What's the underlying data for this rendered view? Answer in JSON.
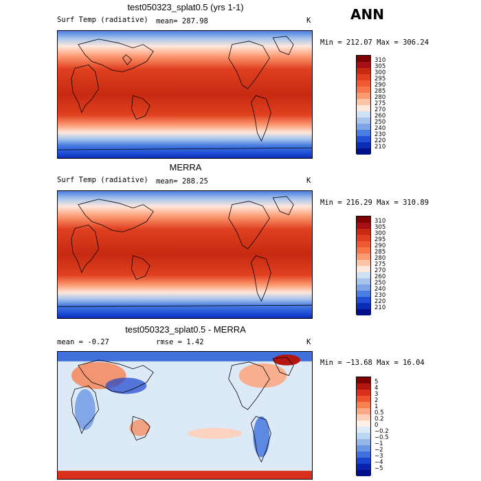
{
  "season": "ANN",
  "panels": [
    {
      "title": "test050323_splat0.5 (yrs 1-1)",
      "left_label": "Surf Temp (radiative)",
      "stat1": "mean= 287.98",
      "stat2": "",
      "units": "K",
      "minmax": "Min = 212.07 Max = 306.24",
      "levels": [
        "310",
        "305",
        "300",
        "295",
        "290",
        "285",
        "280",
        "275",
        "270",
        "260",
        "250",
        "240",
        "230",
        "220",
        "210"
      ],
      "colors": [
        "#7f0000",
        "#a50f15",
        "#c62a11",
        "#e0401f",
        "#ef5a33",
        "#f7774a",
        "#fc9a72",
        "#fdc3a6",
        "#fee7dc",
        "#cfe0f2",
        "#a6c4ec",
        "#7ea4e6",
        "#4a7de0",
        "#1f50d6",
        "#0a2db8",
        "#00108a"
      ]
    },
    {
      "title": "MERRA",
      "left_label": "Surf Temp (radiative)",
      "stat1": "mean= 288.25",
      "stat2": "",
      "units": "K",
      "minmax": "Min = 216.29 Max = 310.89",
      "levels": [
        "310",
        "305",
        "300",
        "295",
        "290",
        "285",
        "280",
        "275",
        "270",
        "260",
        "250",
        "240",
        "230",
        "220",
        "210"
      ],
      "colors": [
        "#7f0000",
        "#a50f15",
        "#c62a11",
        "#e0401f",
        "#ef5a33",
        "#f7774a",
        "#fc9a72",
        "#fdc3a6",
        "#fee7dc",
        "#cfe0f2",
        "#a6c4ec",
        "#7ea4e6",
        "#4a7de0",
        "#1f50d6",
        "#0a2db8",
        "#00108a"
      ]
    },
    {
      "title": "test050323_splat0.5 - MERRA",
      "left_label": "mean =  -0.27",
      "stat1": "rmse =   1.42",
      "stat2": "",
      "units": "K",
      "minmax": "Min = −13.68 Max =  16.04",
      "levels": [
        "5",
        "4",
        "3",
        "2",
        "1",
        "0.5",
        "0.2",
        "0",
        "−0.2",
        "−0.5",
        "−1",
        "−2",
        "−3",
        "−4",
        "−5"
      ],
      "colors": [
        "#7f0000",
        "#b3150f",
        "#d8301b",
        "#ee5530",
        "#f7814f",
        "#fba883",
        "#fdcfb8",
        "#fdeee6",
        "#dceaf7",
        "#bcd5f0",
        "#94b8ea",
        "#6a96e4",
        "#3f70dc",
        "#1a45cf",
        "#0a23ad",
        "#00108a"
      ]
    }
  ]
}
